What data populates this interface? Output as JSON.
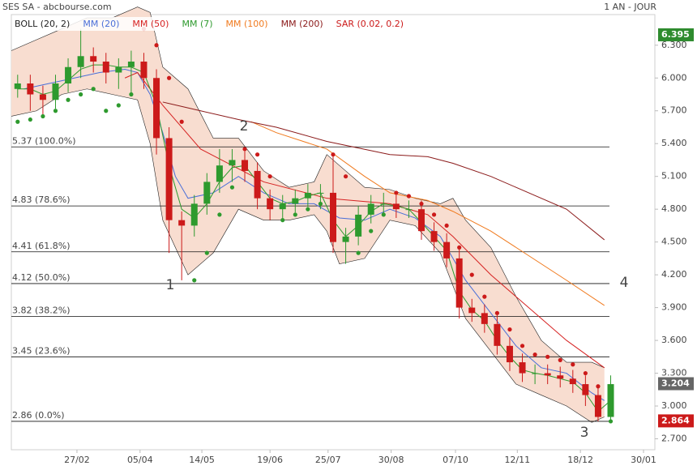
{
  "header": {
    "title": "SES SA - abcbourse.com",
    "period": "1 AN - JOUR"
  },
  "chart_data": {
    "type": "candlestick",
    "x": [
      0.5,
      1.5,
      2.5,
      3.5,
      4.5,
      5.5,
      6.5,
      7.5,
      8.5,
      9.5,
      10.5,
      11.5,
      12.5,
      13.5,
      14.5,
      15.5,
      16.5,
      17.5,
      18.5,
      19.5,
      20.5,
      21.5,
      22.5,
      23.5,
      24.5,
      25.5,
      26.5,
      27.5,
      28.5,
      29.5,
      30.5,
      31.5,
      32.5,
      33.5,
      34.5,
      35.5,
      36.5,
      37.5,
      38.5,
      39.5,
      40.5,
      41.5,
      42.5,
      43.5,
      44.5,
      45.5,
      46.5,
      47.5
    ],
    "open": [
      5.9,
      5.95,
      5.85,
      5.8,
      5.95,
      6.1,
      6.2,
      6.15,
      6.05,
      6.1,
      6.15,
      6.0,
      5.45,
      4.7,
      4.65,
      4.85,
      5.05,
      5.2,
      5.25,
      5.15,
      4.9,
      4.8,
      4.85,
      4.9,
      4.95,
      4.95,
      4.5,
      4.55,
      4.75,
      4.85,
      4.85,
      4.8,
      4.8,
      4.6,
      4.5,
      4.35,
      3.9,
      3.85,
      3.75,
      3.55,
      3.4,
      3.3,
      3.3,
      3.28,
      3.25,
      3.2,
      3.1,
      2.9
    ],
    "high": [
      6.03,
      6.03,
      5.93,
      6.03,
      6.18,
      6.45,
      6.28,
      6.23,
      6.18,
      6.25,
      6.23,
      6.08,
      5.55,
      4.78,
      4.93,
      5.13,
      5.35,
      5.35,
      5.33,
      5.23,
      4.98,
      4.93,
      4.98,
      5.03,
      5.03,
      5.3,
      4.63,
      4.83,
      4.93,
      4.95,
      4.93,
      4.88,
      4.88,
      4.68,
      4.58,
      4.43,
      3.98,
      3.93,
      3.83,
      3.63,
      3.48,
      3.38,
      3.38,
      3.36,
      3.33,
      3.28,
      3.18,
      3.28
    ],
    "low": [
      5.82,
      5.7,
      5.65,
      5.72,
      5.87,
      6.0,
      6.05,
      5.95,
      5.9,
      5.85,
      5.9,
      5.3,
      4.4,
      4.15,
      4.55,
      4.75,
      4.95,
      5.05,
      5.05,
      4.8,
      4.7,
      4.72,
      4.77,
      4.82,
      4.8,
      4.4,
      4.3,
      4.47,
      4.67,
      4.75,
      4.72,
      4.72,
      4.52,
      4.42,
      4.27,
      3.8,
      3.77,
      3.67,
      3.47,
      3.32,
      3.22,
      3.2,
      3.2,
      3.17,
      3.12,
      3.0,
      2.86,
      2.86
    ],
    "close": [
      5.95,
      5.85,
      5.8,
      5.95,
      6.1,
      6.2,
      6.15,
      6.05,
      6.1,
      6.15,
      6.0,
      5.45,
      4.7,
      4.65,
      4.85,
      5.05,
      5.2,
      5.25,
      5.15,
      4.9,
      4.8,
      4.85,
      4.9,
      4.95,
      4.95,
      4.5,
      4.55,
      4.75,
      4.85,
      4.85,
      4.8,
      4.8,
      4.6,
      4.5,
      4.35,
      3.9,
      3.85,
      3.75,
      3.55,
      3.4,
      3.3,
      3.3,
      3.28,
      3.25,
      3.2,
      3.1,
      2.9,
      3.2
    ],
    "up_color": "#2e9a2e",
    "down_color": "#cc1a1a",
    "xlim": [
      0,
      51
    ],
    "xticks": [
      {
        "value": 5.2,
        "label": "27/02"
      },
      {
        "value": 10.2,
        "label": "05/04"
      },
      {
        "value": 15.1,
        "label": "14/05"
      },
      {
        "value": 20.5,
        "label": "19/06"
      },
      {
        "value": 25.1,
        "label": "25/07"
      },
      {
        "value": 30.1,
        "label": "30/08"
      },
      {
        "value": 35.2,
        "label": "07/10"
      },
      {
        "value": 40.1,
        "label": "12/11"
      },
      {
        "value": 45.1,
        "label": "18/12"
      },
      {
        "value": 50.1,
        "label": "30/01"
      }
    ],
    "ylim": [
      2.6,
      6.58
    ],
    "yticks": [
      {
        "value": 2.7,
        "label": "2.700"
      },
      {
        "value": 3.0,
        "label": "3.000"
      },
      {
        "value": 3.3,
        "label": "3.300"
      },
      {
        "value": 3.6,
        "label": "3.600"
      },
      {
        "value": 3.9,
        "label": "3.900"
      },
      {
        "value": 4.2,
        "label": "4.200"
      },
      {
        "value": 4.5,
        "label": "4.500"
      },
      {
        "value": 4.8,
        "label": "4.800"
      },
      {
        "value": 5.1,
        "label": "5.100"
      },
      {
        "value": 5.4,
        "label": "5.400"
      },
      {
        "value": 5.7,
        "label": "5.700"
      },
      {
        "value": 6.0,
        "label": "6.000"
      },
      {
        "value": 6.3,
        "label": "6.300"
      }
    ],
    "bands": [
      {
        "name": "BOLL (20, 2)",
        "color": "#222222",
        "fill": "#f8ddd0",
        "x": [
          0,
          2,
          4,
          6,
          8,
          10,
          11,
          12,
          14,
          16,
          18,
          20,
          22,
          24,
          25,
          26,
          28,
          30,
          32,
          34,
          35,
          36,
          38,
          40,
          42,
          44,
          46,
          47
        ],
        "upper": [
          6.25,
          6.35,
          6.45,
          6.55,
          6.55,
          6.65,
          6.6,
          6.1,
          5.9,
          5.45,
          5.45,
          5.15,
          5.0,
          5.05,
          5.3,
          5.2,
          5.0,
          4.98,
          4.9,
          4.85,
          4.9,
          4.7,
          4.45,
          4.0,
          3.6,
          3.4,
          3.4,
          3.35
        ],
        "lower": [
          5.65,
          5.7,
          5.85,
          5.9,
          5.85,
          5.8,
          5.4,
          4.7,
          4.2,
          4.4,
          4.8,
          4.7,
          4.7,
          4.75,
          4.6,
          4.3,
          4.35,
          4.7,
          4.65,
          4.4,
          4.1,
          3.8,
          3.5,
          3.2,
          3.1,
          3.0,
          2.85,
          2.9
        ]
      }
    ],
    "series": [
      {
        "name": "MM (20)",
        "color": "#4a6fd8",
        "x": [
          1,
          3,
          5,
          7,
          9,
          10,
          11,
          12,
          13,
          14,
          16,
          18,
          20,
          22,
          24,
          26,
          28,
          30,
          32,
          34,
          36,
          38,
          40,
          42,
          44,
          46,
          47
        ],
        "values": [
          5.9,
          5.95,
          6.0,
          6.05,
          6.08,
          6.05,
          5.85,
          5.5,
          5.1,
          4.9,
          4.95,
          5.1,
          4.95,
          4.85,
          4.85,
          4.72,
          4.7,
          4.8,
          4.72,
          4.55,
          4.15,
          3.85,
          3.55,
          3.35,
          3.3,
          3.12,
          3.05
        ]
      },
      {
        "name": "MM (50)",
        "color": "#d62222",
        "x": [
          9,
          10,
          12,
          15,
          20,
          25,
          30,
          33,
          35,
          38,
          40,
          44,
          47
        ],
        "values": [
          6.0,
          6.05,
          5.75,
          5.35,
          5.05,
          4.9,
          4.85,
          4.75,
          4.55,
          4.2,
          4.0,
          3.6,
          3.35
        ]
      },
      {
        "name": "MM (7)",
        "color": "#2e9a2e",
        "x": [
          0.5,
          1.5,
          2.5,
          3.5,
          4.5,
          5.5,
          6.5,
          7.5,
          8.5,
          9.5,
          10.5,
          11.5,
          12.5,
          13.5,
          14.5,
          15.5,
          16.5,
          17.5,
          18.5,
          19.5,
          20.5,
          21.5,
          22.5,
          23.5,
          24.5,
          25.5,
          26.5,
          27.5,
          28.5,
          29.5,
          30.5,
          31.5,
          32.5,
          33.5,
          34.5,
          35.5,
          36.5,
          37.5,
          38.5,
          39.5,
          40.5,
          41.5,
          42.5,
          43.5,
          44.5,
          45.5,
          46.5,
          47.5
        ],
        "values": [
          5.9,
          5.9,
          5.85,
          5.88,
          5.98,
          6.08,
          6.12,
          6.12,
          6.1,
          6.1,
          6.05,
          5.75,
          5.2,
          4.8,
          4.72,
          4.85,
          5.05,
          5.18,
          5.2,
          5.05,
          4.9,
          4.85,
          4.87,
          4.92,
          4.95,
          4.7,
          4.55,
          4.65,
          4.78,
          4.85,
          4.83,
          4.8,
          4.68,
          4.55,
          4.42,
          4.05,
          3.88,
          3.78,
          3.6,
          3.45,
          3.33,
          3.3,
          3.28,
          3.25,
          3.22,
          3.12,
          2.95,
          3.05
        ]
      },
      {
        "name": "MM (100)",
        "color": "#f07a1e",
        "x": [
          19,
          21,
          25,
          28,
          30,
          33,
          35,
          38,
          40,
          44,
          47
        ],
        "values": [
          5.6,
          5.5,
          5.35,
          5.1,
          4.95,
          4.88,
          4.78,
          4.6,
          4.45,
          4.15,
          3.92
        ]
      },
      {
        "name": "MM (200)",
        "color": "#8b1a1a",
        "x": [
          12,
          15,
          18,
          21,
          25,
          30,
          33,
          35,
          38,
          40,
          44,
          47
        ],
        "values": [
          5.78,
          5.7,
          5.62,
          5.55,
          5.42,
          5.3,
          5.28,
          5.22,
          5.1,
          5.0,
          4.8,
          4.52
        ]
      }
    ],
    "sar": {
      "name": "SAR (0.02, 0.2)",
      "color": "#cc1a1a",
      "color_below": "#2e9a2e",
      "values": [
        5.6,
        5.62,
        5.65,
        5.7,
        5.8,
        5.85,
        5.9,
        5.7,
        5.75,
        5.85,
        6.45,
        6.3,
        6.0,
        5.6,
        4.15,
        4.4,
        4.75,
        5.0,
        5.35,
        5.3,
        5.1,
        4.7,
        4.75,
        4.8,
        4.85,
        5.3,
        5.1,
        4.4,
        4.6,
        4.75,
        4.95,
        4.92,
        4.85,
        4.75,
        4.65,
        4.45,
        4.2,
        4.0,
        3.85,
        3.7,
        3.55,
        3.47,
        3.45,
        3.42,
        3.38,
        3.3,
        3.18,
        2.86
      ]
    },
    "fib_levels": [
      {
        "value": 5.37,
        "label": "5.37  (100.0%)"
      },
      {
        "value": 4.83,
        "label": "4.83  (78.6%)"
      },
      {
        "value": 4.41,
        "label": "4.41  (61.8%)"
      },
      {
        "value": 4.12,
        "label": "4.12  (50.0%)"
      },
      {
        "value": 3.82,
        "label": "3.82  (38.2%)"
      },
      {
        "value": 3.45,
        "label": "3.45  (23.6%)"
      },
      {
        "value": 2.86,
        "label": "2.86  (0.0%)"
      }
    ],
    "annotations": [
      "1",
      "2",
      "3",
      "4"
    ],
    "price_tags": [
      {
        "value": 6.395,
        "color": "#2e8b2e"
      },
      {
        "value": 3.204,
        "color": "#666666"
      },
      {
        "value": 2.864,
        "color": "#cc1a1a"
      }
    ]
  }
}
